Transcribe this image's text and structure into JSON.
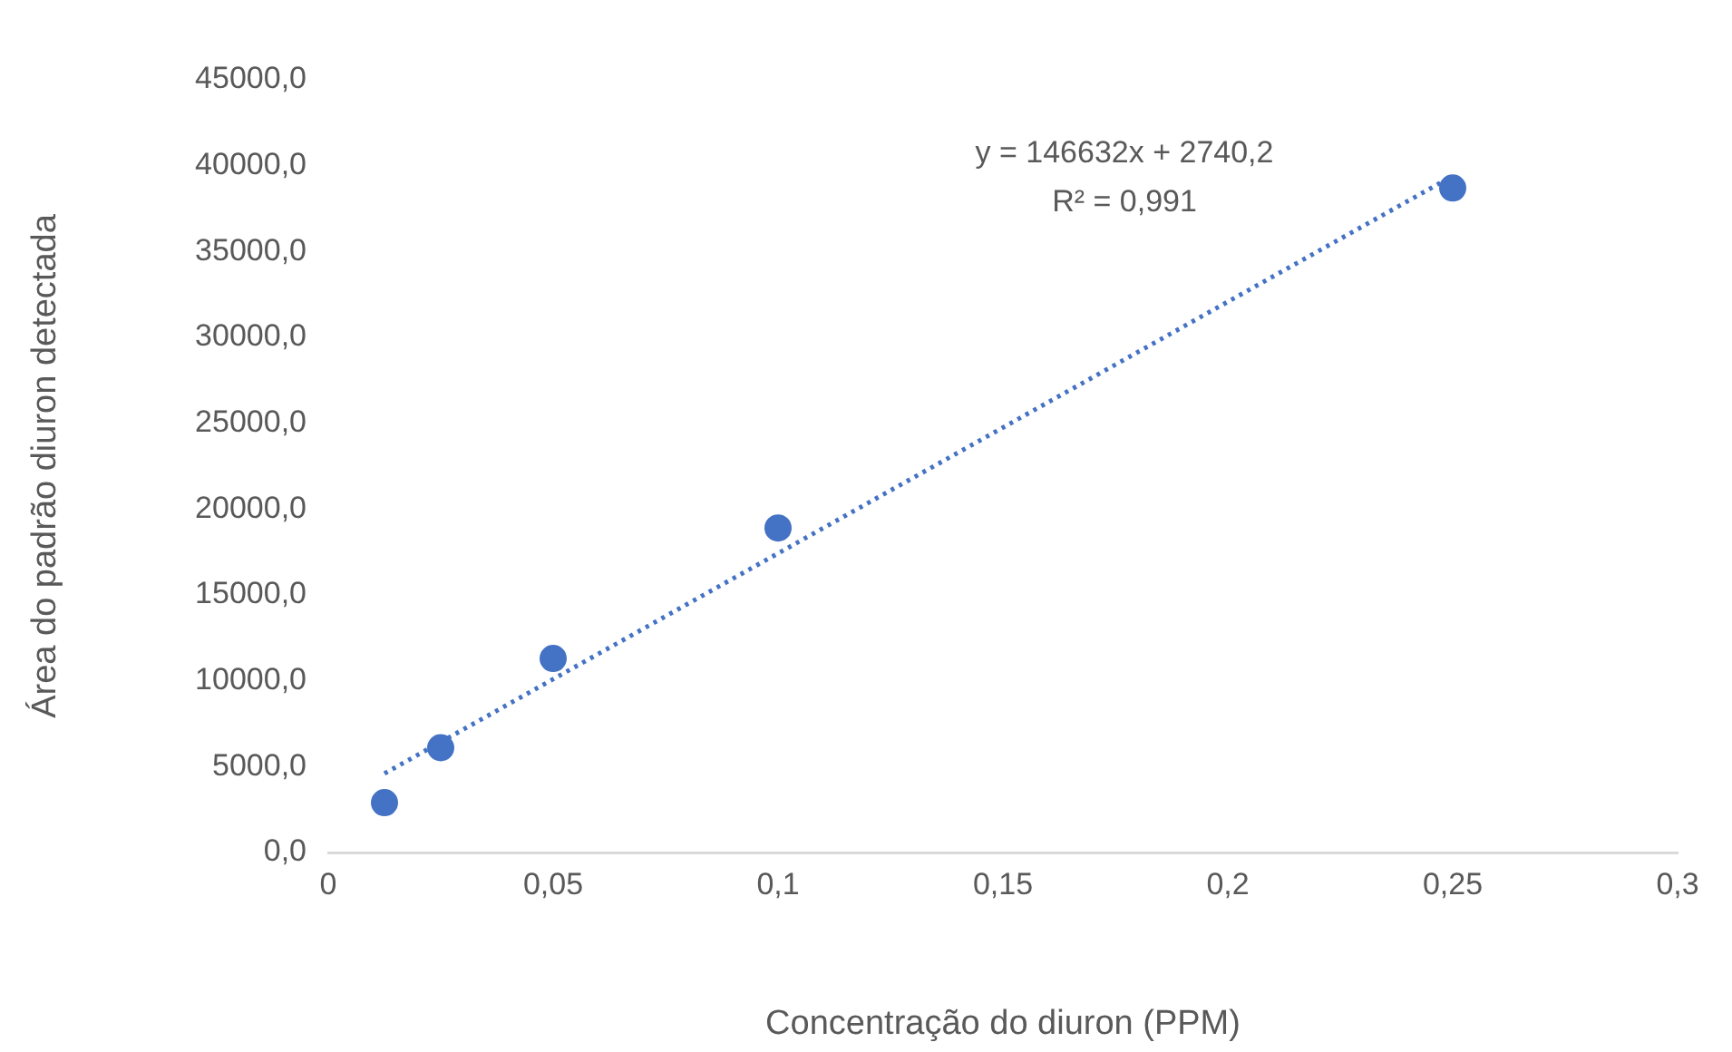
{
  "chart_data": {
    "type": "scatter",
    "xlabel": "Concentração do diuron (PPM)",
    "ylabel": "Área do padrão diuron detectada",
    "xlim": [
      0,
      0.3
    ],
    "xticks": [
      0,
      {
        "value": 0.05,
        "label": "0,05"
      },
      {
        "value": 0.1,
        "label": "0,1"
      },
      {
        "value": 0.15,
        "label": "0,15"
      },
      {
        "value": 0.2,
        "label": "0,2"
      },
      {
        "value": 0.25,
        "label": "0,25"
      },
      {
        "value": 0.3,
        "label": "0,3"
      }
    ],
    "ylim": [
      0,
      45000
    ],
    "yticks": [
      {
        "value": 0,
        "label": "0,0"
      },
      {
        "value": 5000,
        "label": "5000,0"
      },
      {
        "value": 10000,
        "label": "10000,0"
      },
      {
        "value": 15000,
        "label": "15000,0"
      },
      {
        "value": 20000,
        "label": "20000,0"
      },
      {
        "value": 25000,
        "label": "25000,0"
      },
      {
        "value": 30000,
        "label": "30000,0"
      },
      {
        "value": 35000,
        "label": "35000,0"
      },
      {
        "value": 40000,
        "label": "40000,0"
      },
      {
        "value": 45000,
        "label": "45000,0"
      }
    ],
    "grid": false,
    "legend": false,
    "series": [
      {
        "type": "scatter",
        "marker": "circle",
        "color": "#4472c4",
        "x": [
          0.0125,
          0.025,
          0.05,
          0.1,
          0.25
        ],
        "values": [
          2900,
          6100,
          11300,
          18900,
          38700
        ]
      },
      {
        "type": "line",
        "marker": "none",
        "line_style": "dotted",
        "color": "#4472c4",
        "x": [
          0.0125,
          0.25
        ],
        "values": [
          4600,
          39400
        ]
      }
    ],
    "annotations": [
      "y = 146632x + 2740,2",
      "R² = 0,991"
    ]
  }
}
